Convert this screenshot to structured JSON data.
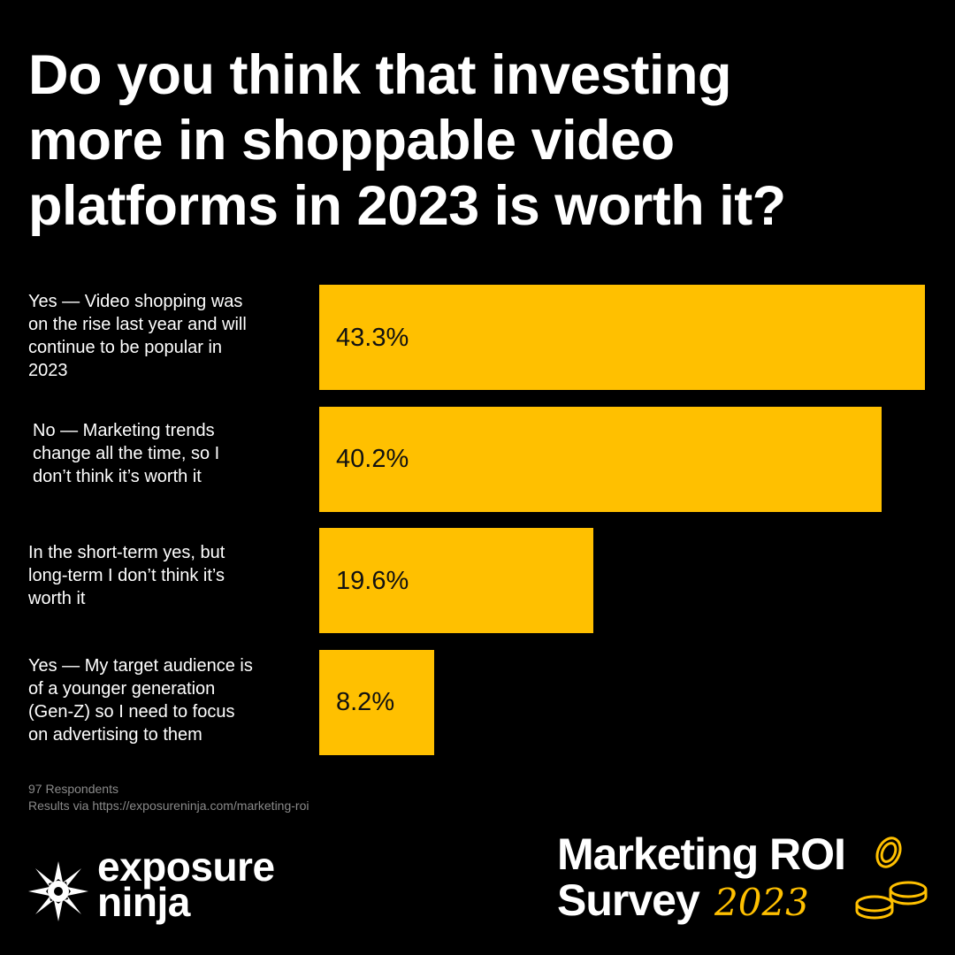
{
  "title_lines": [
    "Do you think that investing",
    "more in shoppable video",
    "platforms in 2023 is worth it?"
  ],
  "chart_data": {
    "type": "bar",
    "orientation": "horizontal",
    "title": "Do you think that investing more in shoppable video platforms in 2023 is worth it?",
    "categories": [
      [
        "Yes — Video shopping was",
        "on the rise last year and will",
        "continue to be popular in",
        "2023"
      ],
      [
        "No — Marketing trends",
        "change all the time, so I",
        "don’t think it’s worth it"
      ],
      [
        "In the short-term yes, but",
        "long-term I don’t think it’s",
        "worth it"
      ],
      [
        "Yes — My target audience is",
        "of a younger generation",
        "(Gen-Z) so I need to focus",
        "on advertising to them"
      ]
    ],
    "values": [
      43.3,
      40.2,
      19.6,
      8.2
    ],
    "value_labels": [
      "43.3%",
      "40.2%",
      "19.6%",
      "8.2%"
    ],
    "xlim": [
      0,
      43.3
    ],
    "bar_color": "#ffc000",
    "grid": false,
    "legend": "none"
  },
  "footnote": {
    "respondents": "97 Respondents",
    "source": "Results via https://exposureninja.com/marketing-roi"
  },
  "brand": {
    "line1": "exposure",
    "line2": "ninja"
  },
  "survey_badge": {
    "line1": "Marketing ROI",
    "line2": "Survey",
    "year": "2023"
  },
  "colors": {
    "background": "#000000",
    "accent": "#ffc000",
    "text": "#ffffff"
  }
}
